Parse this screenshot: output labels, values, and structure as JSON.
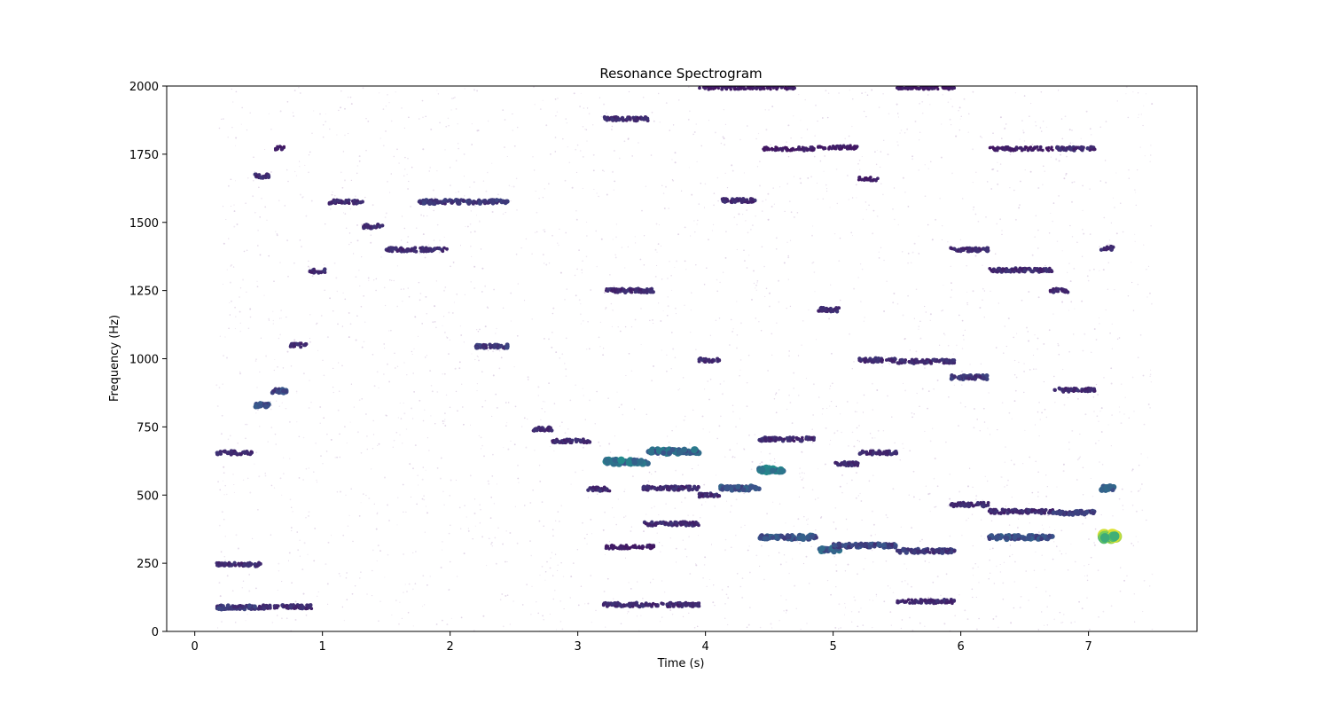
{
  "chart_data": {
    "type": "scatter",
    "title": "Resonance Spectrogram",
    "xlabel": "Time (s)",
    "ylabel": "Frequency (Hz)",
    "xlim": [
      -0.22,
      7.85
    ],
    "ylim": [
      0,
      2000
    ],
    "x_ticks": [
      0,
      1,
      2,
      3,
      4,
      5,
      6,
      7
    ],
    "y_ticks": [
      0,
      250,
      500,
      750,
      1000,
      1250,
      1500,
      1750,
      2000
    ],
    "grid": false,
    "legend": "none",
    "colormap": "viridis",
    "colors": {
      "low": "#440154",
      "mid": "#2c8e8c",
      "high": "#fde725",
      "faint": "#c9b3d3"
    },
    "segments": [
      {
        "t0": 0.17,
        "t1": 0.5,
        "f": 88,
        "level": 0.2
      },
      {
        "t0": 0.5,
        "t1": 0.92,
        "f": 90,
        "level": 0.15
      },
      {
        "t0": 0.17,
        "t1": 0.52,
        "f": 245,
        "level": 0.15
      },
      {
        "t0": 0.17,
        "t1": 0.45,
        "f": 655,
        "level": 0.15
      },
      {
        "t0": 0.47,
        "t1": 0.58,
        "f": 830,
        "level": 0.3
      },
      {
        "t0": 0.47,
        "t1": 0.58,
        "f": 1670,
        "level": 0.15
      },
      {
        "t0": 0.6,
        "t1": 0.72,
        "f": 882,
        "level": 0.25
      },
      {
        "t0": 0.62,
        "t1": 0.7,
        "f": 1772,
        "level": 0.1
      },
      {
        "t0": 0.75,
        "t1": 0.88,
        "f": 1050,
        "level": 0.15
      },
      {
        "t0": 0.9,
        "t1": 1.02,
        "f": 1322,
        "level": 0.15
      },
      {
        "t0": 1.05,
        "t1": 1.32,
        "f": 1575,
        "level": 0.15
      },
      {
        "t0": 1.32,
        "t1": 1.48,
        "f": 1485,
        "level": 0.15
      },
      {
        "t0": 1.5,
        "t1": 1.98,
        "f": 1400,
        "level": 0.15
      },
      {
        "t0": 1.75,
        "t1": 2.45,
        "f": 1575,
        "level": 0.2
      },
      {
        "t0": 2.2,
        "t1": 2.45,
        "f": 1045,
        "level": 0.2
      },
      {
        "t0": 2.65,
        "t1": 2.8,
        "f": 742,
        "level": 0.15
      },
      {
        "t0": 2.8,
        "t1": 3.1,
        "f": 698,
        "level": 0.15
      },
      {
        "t0": 3.08,
        "t1": 3.25,
        "f": 522,
        "level": 0.15
      },
      {
        "t0": 3.22,
        "t1": 3.55,
        "f": 622,
        "level": 0.45
      },
      {
        "t0": 3.55,
        "t1": 3.95,
        "f": 660,
        "level": 0.4
      },
      {
        "t0": 3.2,
        "t1": 3.55,
        "f": 1880,
        "level": 0.15
      },
      {
        "t0": 3.22,
        "t1": 3.6,
        "f": 1250,
        "level": 0.15
      },
      {
        "t0": 3.5,
        "t1": 3.95,
        "f": 525,
        "level": 0.15
      },
      {
        "t0": 3.5,
        "t1": 3.95,
        "f": 395,
        "level": 0.15
      },
      {
        "t0": 3.2,
        "t1": 3.95,
        "f": 98,
        "level": 0.15
      },
      {
        "t0": 3.95,
        "t1": 4.12,
        "f": 995,
        "level": 0.15
      },
      {
        "t0": 3.95,
        "t1": 4.12,
        "f": 500,
        "level": 0.15
      },
      {
        "t0": 4.12,
        "t1": 4.42,
        "f": 525,
        "level": 0.3
      },
      {
        "t0": 4.12,
        "t1": 4.42,
        "f": 1580,
        "level": 0.15
      },
      {
        "t0": 4.42,
        "t1": 4.62,
        "f": 592,
        "level": 0.45
      },
      {
        "t0": 4.42,
        "t1": 4.88,
        "f": 345,
        "level": 0.3
      },
      {
        "t0": 4.42,
        "t1": 4.85,
        "f": 705,
        "level": 0.15
      },
      {
        "t0": 4.45,
        "t1": 4.85,
        "f": 1770,
        "level": 0.1
      },
      {
        "t0": 4.88,
        "t1": 5.05,
        "f": 300,
        "level": 0.35
      },
      {
        "t0": 5.0,
        "t1": 5.5,
        "f": 315,
        "level": 0.25
      },
      {
        "t0": 4.88,
        "t1": 5.2,
        "f": 1775,
        "level": 0.1
      },
      {
        "t0": 4.88,
        "t1": 5.05,
        "f": 1180,
        "level": 0.15
      },
      {
        "t0": 5.0,
        "t1": 5.2,
        "f": 615,
        "level": 0.15
      },
      {
        "t0": 5.2,
        "t1": 5.5,
        "f": 655,
        "level": 0.15
      },
      {
        "t0": 5.2,
        "t1": 5.5,
        "f": 995,
        "level": 0.15
      },
      {
        "t0": 5.2,
        "t1": 5.35,
        "f": 1660,
        "level": 0.1
      },
      {
        "t0": 5.5,
        "t1": 5.95,
        "f": 990,
        "level": 0.15
      },
      {
        "t0": 5.5,
        "t1": 5.95,
        "f": 110,
        "level": 0.15
      },
      {
        "t0": 5.5,
        "t1": 5.95,
        "f": 295,
        "level": 0.2
      },
      {
        "t0": 5.5,
        "t1": 5.95,
        "f": 1995,
        "level": 0.1
      },
      {
        "t0": 5.92,
        "t1": 6.22,
        "f": 932,
        "level": 0.2
      },
      {
        "t0": 5.92,
        "t1": 6.22,
        "f": 465,
        "level": 0.15
      },
      {
        "t0": 5.92,
        "t1": 6.22,
        "f": 1400,
        "level": 0.15
      },
      {
        "t0": 6.22,
        "t1": 6.72,
        "f": 345,
        "level": 0.3
      },
      {
        "t0": 6.22,
        "t1": 6.72,
        "f": 440,
        "level": 0.15
      },
      {
        "t0": 6.22,
        "t1": 6.72,
        "f": 1325,
        "level": 0.15
      },
      {
        "t0": 6.22,
        "t1": 6.72,
        "f": 1770,
        "level": 0.1
      },
      {
        "t0": 6.7,
        "t1": 6.85,
        "f": 1250,
        "level": 0.15
      },
      {
        "t0": 6.72,
        "t1": 7.05,
        "f": 885,
        "level": 0.15
      },
      {
        "t0": 6.72,
        "t1": 7.05,
        "f": 435,
        "level": 0.2
      },
      {
        "t0": 6.75,
        "t1": 7.05,
        "f": 1770,
        "level": 0.15
      },
      {
        "t0": 7.1,
        "t1": 7.22,
        "f": 345,
        "level": 0.95
      },
      {
        "t0": 7.1,
        "t1": 7.2,
        "f": 525,
        "level": 0.4
      },
      {
        "t0": 7.1,
        "t1": 7.2,
        "f": 1405,
        "level": 0.15
      },
      {
        "t0": 3.95,
        "t1": 4.7,
        "f": 1995,
        "level": 0.1
      },
      {
        "t0": 3.22,
        "t1": 3.6,
        "f": 310,
        "level": 0.1
      }
    ]
  }
}
